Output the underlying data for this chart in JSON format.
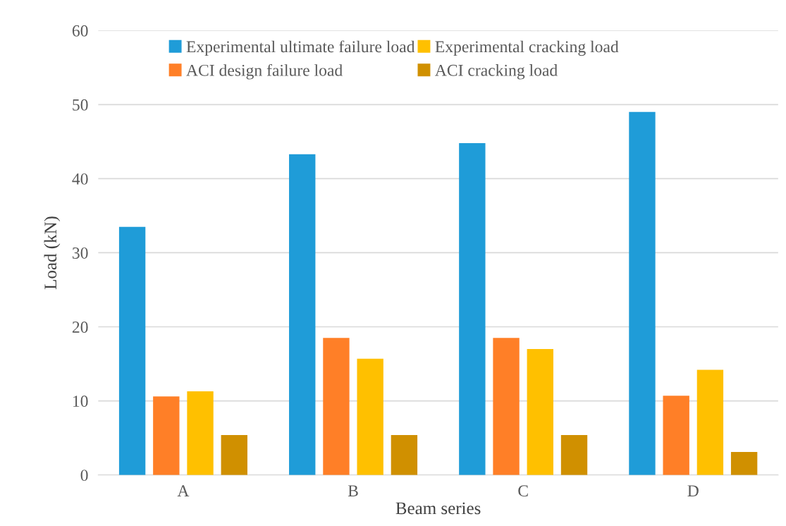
{
  "chart_data": {
    "type": "bar",
    "xlabel": "Beam series",
    "ylabel": "Load (kN)",
    "categories": [
      "A",
      "B",
      "C",
      "D"
    ],
    "series": [
      {
        "name": "Experimental ultimate failure load",
        "color": "#1f9cd8",
        "values": [
          33.5,
          43.3,
          44.8,
          49.0
        ]
      },
      {
        "name": "ACI design failure load",
        "color": "#ff7f27",
        "values": [
          10.6,
          18.5,
          18.5,
          10.7
        ]
      },
      {
        "name": "Experimental cracking load",
        "color": "#ffc000",
        "values": [
          11.3,
          15.7,
          17.0,
          14.2
        ]
      },
      {
        "name": "ACI cracking load",
        "color": "#d09000",
        "values": [
          5.4,
          5.4,
          5.4,
          3.1
        ]
      }
    ],
    "ylim": [
      0,
      60
    ],
    "yticks": [
      0,
      10,
      20,
      30,
      40,
      50,
      60
    ],
    "grid": "y",
    "legend": "top"
  }
}
